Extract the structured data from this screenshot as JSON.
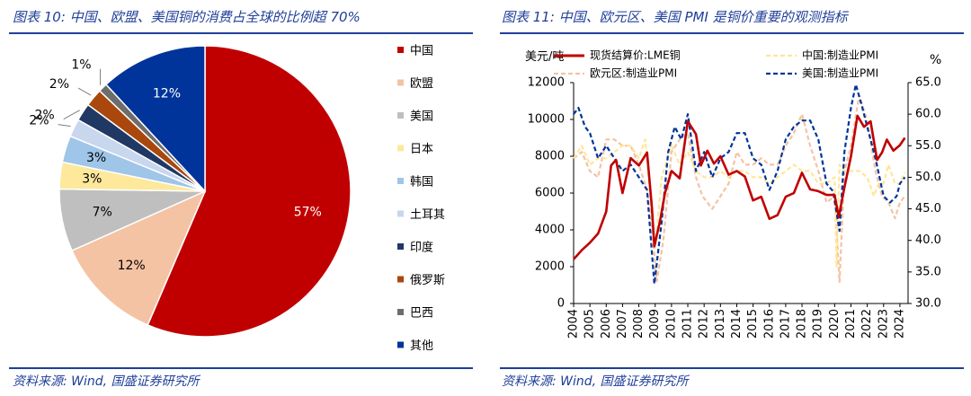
{
  "left": {
    "title": "图表 10: 中国、欧盟、美国铜的消费占全球的比例超 70%",
    "source": "资料来源: Wind, 国盛证券研究所"
  },
  "right": {
    "title": "图表 11: 中国、欧元区、美国 PMI 是铜价重要的观测指标",
    "source": "资料来源: Wind, 国盛证券研究所"
  },
  "chart_data": [
    {
      "type": "pie",
      "legend_position": "right",
      "slices": [
        {
          "label": "中国",
          "value": 57,
          "display": "57%",
          "color": "#c00000"
        },
        {
          "label": "欧盟",
          "value": 12,
          "display": "12%",
          "color": "#f4c3a3"
        },
        {
          "label": "美国",
          "value": 7,
          "display": "7%",
          "color": "#bfbfbf"
        },
        {
          "label": "日本",
          "value": 3,
          "display": "3%",
          "color": "#fde89c"
        },
        {
          "label": "韩国",
          "value": 3,
          "display": "3%",
          "color": "#9fc5e8"
        },
        {
          "label": "土耳其",
          "value": 2,
          "display": "2%",
          "color": "#c8d6ee"
        },
        {
          "label": "印度",
          "value": 2,
          "display": "2%",
          "color": "#203864"
        },
        {
          "label": "俄罗斯",
          "value": 2,
          "display": "2%",
          "color": "#a9470d"
        },
        {
          "label": "巴西",
          "value": 1,
          "display": "1%",
          "color": "#6d6d6d"
        },
        {
          "label": "其他",
          "value": 12,
          "display": "12%",
          "color": "#00349a"
        }
      ]
    },
    {
      "type": "line",
      "left_axis": {
        "label": "美元/吨",
        "ylim": [
          0,
          12000
        ],
        "ticks": [
          0,
          2000,
          4000,
          6000,
          8000,
          10000,
          12000
        ]
      },
      "right_axis": {
        "label": "%",
        "ylim": [
          30,
          65
        ],
        "ticks": [
          "30.0",
          "35.0",
          "40.0",
          "45.0",
          "50.0",
          "55.0",
          "60.0",
          "65.0"
        ]
      },
      "x_ticks": [
        "2004",
        "2005",
        "2006",
        "2007",
        "2008",
        "2009",
        "2010",
        "2011",
        "2012",
        "2013",
        "2014",
        "2015",
        "2016",
        "2017",
        "2018",
        "2019",
        "2020",
        "2021",
        "2022",
        "2023",
        "2024"
      ],
      "legend_position": "top",
      "series": [
        {
          "name": "现货结算价:LME铜",
          "axis": "left",
          "color": "#c00000",
          "style": "solid",
          "x": [
            2004.0,
            2004.5,
            2005.0,
            2005.5,
            2006.0,
            2006.3,
            2006.6,
            2007.0,
            2007.5,
            2008.0,
            2008.5,
            2008.8,
            2008.95,
            2009.3,
            2009.6,
            2010.0,
            2010.5,
            2011.0,
            2011.5,
            2011.8,
            2012.2,
            2012.6,
            2013.0,
            2013.5,
            2014.0,
            2014.5,
            2015.0,
            2015.5,
            2016.0,
            2016.5,
            2017.0,
            2017.5,
            2018.0,
            2018.5,
            2019.0,
            2019.5,
            2020.0,
            2020.25,
            2020.6,
            2021.0,
            2021.4,
            2021.8,
            2022.2,
            2022.6,
            2022.9,
            2023.2,
            2023.6,
            2024.0,
            2024.3
          ],
          "values": [
            2400,
            2900,
            3300,
            3800,
            5000,
            7500,
            7800,
            6000,
            7900,
            7500,
            8200,
            5200,
            3100,
            4500,
            6000,
            7200,
            6800,
            9900,
            9200,
            7500,
            8300,
            7600,
            8000,
            7000,
            7200,
            6900,
            5600,
            5800,
            4600,
            4800,
            5800,
            6000,
            7100,
            6200,
            6100,
            5900,
            5900,
            4700,
            6300,
            8000,
            10200,
            9600,
            9900,
            7800,
            8200,
            8900,
            8300,
            8600,
            9000
          ]
        },
        {
          "name": "中国:制造业PMI",
          "axis": "right",
          "color": "#ffe699",
          "style": "dashed",
          "x": [
            2004.0,
            2004.5,
            2005.0,
            2005.5,
            2006.0,
            2006.5,
            2007.0,
            2007.5,
            2008.0,
            2008.4,
            2008.8,
            2009.0,
            2009.4,
            2010.0,
            2010.5,
            2011.0,
            2011.5,
            2012.0,
            2012.5,
            2013.0,
            2013.5,
            2014.0,
            2014.5,
            2015.0,
            2015.5,
            2016.0,
            2016.5,
            2017.0,
            2017.5,
            2018.0,
            2018.5,
            2019.0,
            2019.5,
            2020.0,
            2020.12,
            2020.3,
            2020.6,
            2021.0,
            2021.5,
            2022.0,
            2022.4,
            2022.7,
            2023.0,
            2023.3,
            2023.7,
            2024.0,
            2024.3
          ],
          "values": [
            53,
            55,
            52,
            53,
            53,
            54,
            55,
            55,
            53,
            56,
            44,
            38.8,
            50,
            55,
            52,
            54,
            51,
            50,
            50,
            51,
            50,
            51,
            51,
            50,
            50,
            49,
            50,
            51,
            52,
            51,
            51,
            49,
            49,
            50,
            35.7,
            52,
            51,
            51,
            51,
            50,
            47,
            49,
            49,
            52,
            49,
            49,
            50.8
          ]
        },
        {
          "name": "欧元区:制造业PMI",
          "axis": "right",
          "color": "#f4c3a3",
          "style": "dashed",
          "x": [
            2004.0,
            2004.5,
            2005.0,
            2005.5,
            2006.0,
            2006.5,
            2007.0,
            2007.5,
            2008.0,
            2008.5,
            2008.8,
            2009.1,
            2009.5,
            2010.0,
            2010.5,
            2011.0,
            2011.5,
            2011.9,
            2012.5,
            2013.0,
            2013.5,
            2014.0,
            2014.5,
            2015.0,
            2015.5,
            2016.0,
            2016.5,
            2017.0,
            2017.5,
            2018.0,
            2018.5,
            2019.0,
            2019.5,
            2020.0,
            2020.3,
            2020.6,
            2021.0,
            2021.5,
            2022.0,
            2022.5,
            2022.9,
            2023.3,
            2023.7,
            2024.0,
            2024.3
          ],
          "values": [
            53,
            54,
            51,
            50,
            56,
            56,
            55,
            55,
            52,
            48,
            42,
            33.5,
            40,
            54,
            56,
            57,
            50,
            47,
            45,
            47,
            49,
            54,
            52,
            52,
            53,
            52,
            52,
            55,
            57,
            60,
            55,
            51,
            46,
            47,
            33.4,
            51,
            55,
            63,
            59,
            51,
            47,
            46,
            43.5,
            46,
            47
          ]
        },
        {
          "name": "美国:制造业PMI",
          "axis": "right",
          "color": "#00349a",
          "style": "dashed",
          "x": [
            2004.0,
            2004.3,
            2004.7,
            2005.0,
            2005.5,
            2006.0,
            2006.5,
            2007.0,
            2007.5,
            2008.0,
            2008.5,
            2008.8,
            2008.95,
            2009.4,
            2009.8,
            2010.2,
            2010.6,
            2011.0,
            2011.5,
            2012.0,
            2012.5,
            2013.0,
            2013.5,
            2014.0,
            2014.5,
            2015.0,
            2015.5,
            2016.0,
            2016.5,
            2017.0,
            2017.5,
            2018.0,
            2018.5,
            2019.0,
            2019.5,
            2019.9,
            2020.3,
            2020.6,
            2021.0,
            2021.3,
            2021.7,
            2022.0,
            2022.5,
            2023.0,
            2023.4,
            2023.8,
            2024.0,
            2024.3
          ],
          "values": [
            60,
            61,
            58,
            57,
            53,
            55,
            53,
            51,
            52,
            50,
            48,
            38,
            33.1,
            43,
            54,
            58,
            56,
            60,
            51,
            54,
            50,
            53,
            54,
            57,
            57,
            53,
            52,
            48,
            51,
            56,
            58,
            59,
            59,
            56,
            49,
            47.8,
            41.5,
            54,
            61,
            64.7,
            61,
            58,
            53,
            47,
            46,
            47,
            49,
            50
          ]
        }
      ]
    }
  ]
}
